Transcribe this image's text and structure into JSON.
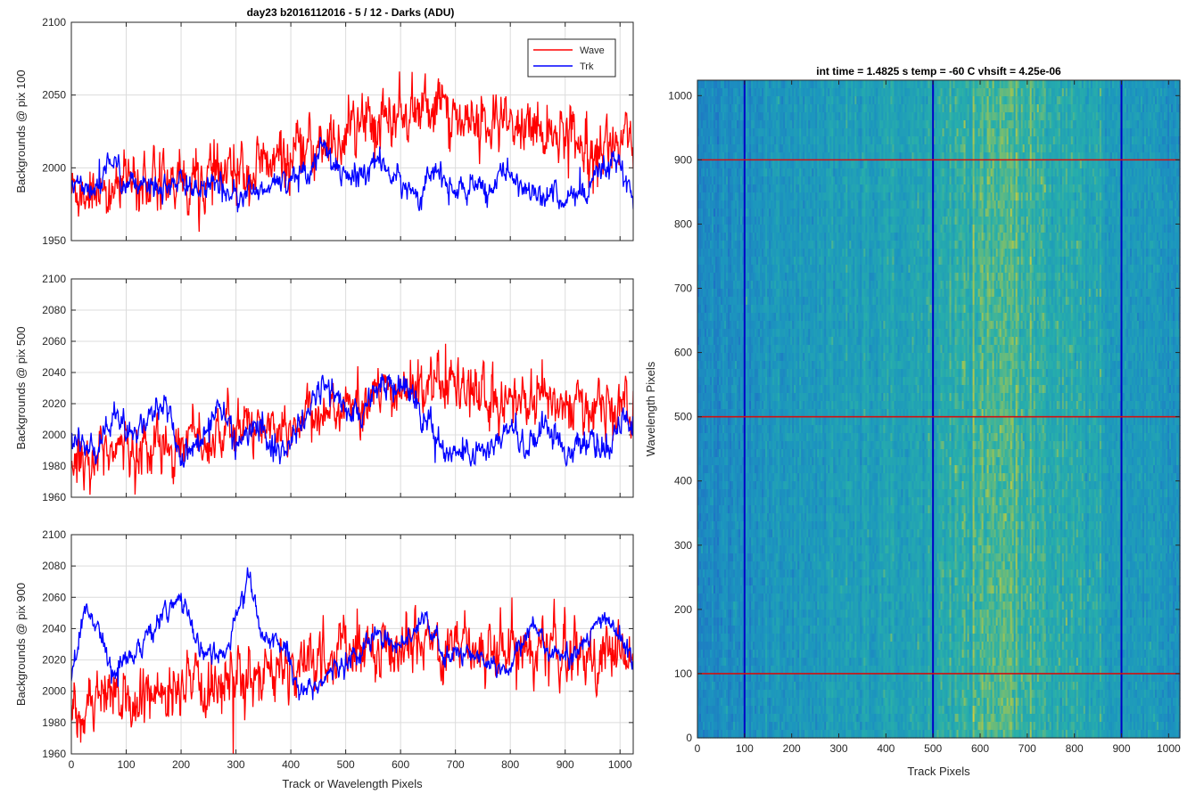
{
  "figure": {
    "suptitle": "day23 b2016112016 - 5 / 12 - Darks (ADU)"
  },
  "colors": {
    "wave": "#ff0000",
    "trk": "#0000ff",
    "grid": "#dcdcdc",
    "heatmap_low": "#1f6fc2",
    "heatmap_mid": "#1fa3b8",
    "heatmap_high": "#b8c94c"
  },
  "chart_data": [
    {
      "id": "ax1",
      "type": "line",
      "title": "day23 b2016112016 - 5 / 12 - Darks (ADU)",
      "xlabel": "",
      "ylabel": "Backgrounds @ pix 100",
      "xlim": [
        0,
        1024
      ],
      "ylim": [
        1950,
        2100
      ],
      "xticks": [
        0,
        100,
        200,
        300,
        400,
        500,
        600,
        700,
        800,
        900,
        1000
      ],
      "yticks": [
        1950,
        2000,
        2050,
        2100
      ],
      "show_xticklabels": false,
      "grid": true,
      "legend": {
        "placement": "top-right",
        "entries": [
          "Wave",
          "Trk"
        ]
      },
      "series": [
        {
          "name": "Wave",
          "color": "#ff0000",
          "noise": 12,
          "x": [
            0,
            100,
            200,
            300,
            400,
            460,
            500,
            550,
            600,
            650,
            680,
            700,
            750,
            800,
            850,
            900,
            950,
            1000,
            1024
          ],
          "y": [
            1985,
            1987,
            1990,
            1995,
            2005,
            2015,
            2022,
            2030,
            2038,
            2040,
            2045,
            2035,
            2030,
            2028,
            2025,
            2025,
            2020,
            2015,
            2010
          ]
        },
        {
          "name": "Trk",
          "color": "#0000ff",
          "noise": 5,
          "x": [
            0,
            50,
            70,
            100,
            150,
            200,
            250,
            300,
            350,
            400,
            440,
            460,
            480,
            510,
            550,
            600,
            640,
            660,
            690,
            720,
            760,
            790,
            820,
            860,
            900,
            940,
            960,
            990,
            1024
          ],
          "y": [
            1993,
            1985,
            2008,
            1988,
            1987,
            1988,
            1986,
            1983,
            1983,
            1993,
            2002,
            2020,
            2000,
            1990,
            2005,
            1990,
            1980,
            2000,
            1985,
            1985,
            1983,
            2000,
            1985,
            1983,
            1980,
            1980,
            1995,
            2005,
            1980
          ]
        }
      ]
    },
    {
      "id": "ax2",
      "type": "line",
      "xlabel": "",
      "ylabel": "Backgrounds @ pix 500",
      "xlim": [
        0,
        1024
      ],
      "ylim": [
        1960,
        2100
      ],
      "xticks": [
        0,
        100,
        200,
        300,
        400,
        500,
        600,
        700,
        800,
        900,
        1000
      ],
      "yticks": [
        1960,
        1980,
        2000,
        2020,
        2040,
        2060,
        2080,
        2100
      ],
      "show_xticklabels": false,
      "grid": true,
      "series": [
        {
          "name": "Wave",
          "color": "#ff0000",
          "noise": 10,
          "x": [
            0,
            100,
            200,
            300,
            400,
            500,
            560,
            600,
            650,
            700,
            750,
            800,
            850,
            900,
            950,
            1000,
            1024
          ],
          "y": [
            1985,
            1990,
            1995,
            2002,
            2010,
            2018,
            2025,
            2030,
            2033,
            2030,
            2025,
            2022,
            2020,
            2020,
            2018,
            2015,
            2012
          ]
        },
        {
          "name": "Trk",
          "color": "#0000ff",
          "noise": 5,
          "x": [
            0,
            40,
            80,
            110,
            150,
            170,
            200,
            230,
            270,
            300,
            340,
            380,
            420,
            460,
            520,
            560,
            610,
            640,
            680,
            720,
            760,
            800,
            830,
            860,
            900,
            940,
            980,
            1010,
            1024
          ],
          "y": [
            2000,
            1988,
            2013,
            2000,
            2015,
            2020,
            1988,
            1992,
            2020,
            1995,
            2005,
            1988,
            2005,
            2035,
            2010,
            2030,
            2035,
            2010,
            1990,
            1988,
            1990,
            2005,
            1990,
            2010,
            1990,
            1992,
            1992,
            2010,
            2005
          ]
        }
      ]
    },
    {
      "id": "ax3",
      "type": "line",
      "xlabel": "Track or Wavelength Pixels",
      "ylabel": "Backgrounds @ pix 900",
      "xlim": [
        0,
        1024
      ],
      "ylim": [
        1960,
        2100
      ],
      "xticks": [
        0,
        100,
        200,
        300,
        400,
        500,
        600,
        700,
        800,
        900,
        1000
      ],
      "yticks": [
        1960,
        1980,
        2000,
        2020,
        2040,
        2060,
        2080,
        2100
      ],
      "show_xticklabels": true,
      "grid": true,
      "series": [
        {
          "name": "Wave",
          "color": "#ff0000",
          "noise": 11,
          "x": [
            0,
            100,
            200,
            300,
            400,
            500,
            600,
            700,
            800,
            900,
            1000,
            1024
          ],
          "y": [
            1985,
            1992,
            1998,
            2005,
            2015,
            2025,
            2030,
            2030,
            2028,
            2025,
            2022,
            2015
          ]
        },
        {
          "name": "Trk",
          "color": "#0000ff",
          "noise": 4,
          "x": [
            0,
            25,
            50,
            80,
            110,
            150,
            190,
            210,
            240,
            280,
            310,
            325,
            350,
            390,
            410,
            440,
            470,
            500,
            530,
            560,
            600,
            640,
            680,
            720,
            760,
            800,
            840,
            870,
            900,
            940,
            970,
            1000,
            1024
          ],
          "y": [
            2010,
            2052,
            2040,
            2012,
            2025,
            2040,
            2058,
            2052,
            2025,
            2025,
            2055,
            2070,
            2035,
            2030,
            2005,
            2000,
            2010,
            2020,
            2025,
            2040,
            2025,
            2050,
            2020,
            2025,
            2020,
            2015,
            2045,
            2025,
            2022,
            2030,
            2050,
            2035,
            2020
          ]
        }
      ]
    },
    {
      "id": "ax4",
      "type": "heatmap",
      "title": "int time = 1.4825 s    temp = -60 C    vhsift = 4.25e-06",
      "xlabel": "Track Pixels",
      "ylabel": "Wavelength Pixels",
      "xlim": [
        0,
        1024
      ],
      "ylim": [
        0,
        1024
      ],
      "xticks": [
        0,
        100,
        200,
        300,
        400,
        500,
        600,
        700,
        800,
        900,
        1000
      ],
      "yticks": [
        0,
        100,
        200,
        300,
        400,
        500,
        600,
        700,
        800,
        900,
        1000
      ],
      "brightness_profile": {
        "x": [
          0,
          100,
          200,
          300,
          400,
          500,
          560,
          620,
          650,
          680,
          720,
          780,
          850,
          900,
          1000,
          1024
        ],
        "level": [
          0.3,
          0.36,
          0.42,
          0.46,
          0.5,
          0.55,
          0.62,
          0.68,
          0.74,
          0.7,
          0.66,
          0.6,
          0.52,
          0.45,
          0.4,
          0.38
        ]
      },
      "vertical_markers": {
        "color": "#0000c8",
        "x": [
          100,
          500,
          900
        ]
      },
      "horizontal_markers": {
        "color": "#d01010",
        "y": [
          100,
          500,
          900
        ]
      }
    }
  ]
}
